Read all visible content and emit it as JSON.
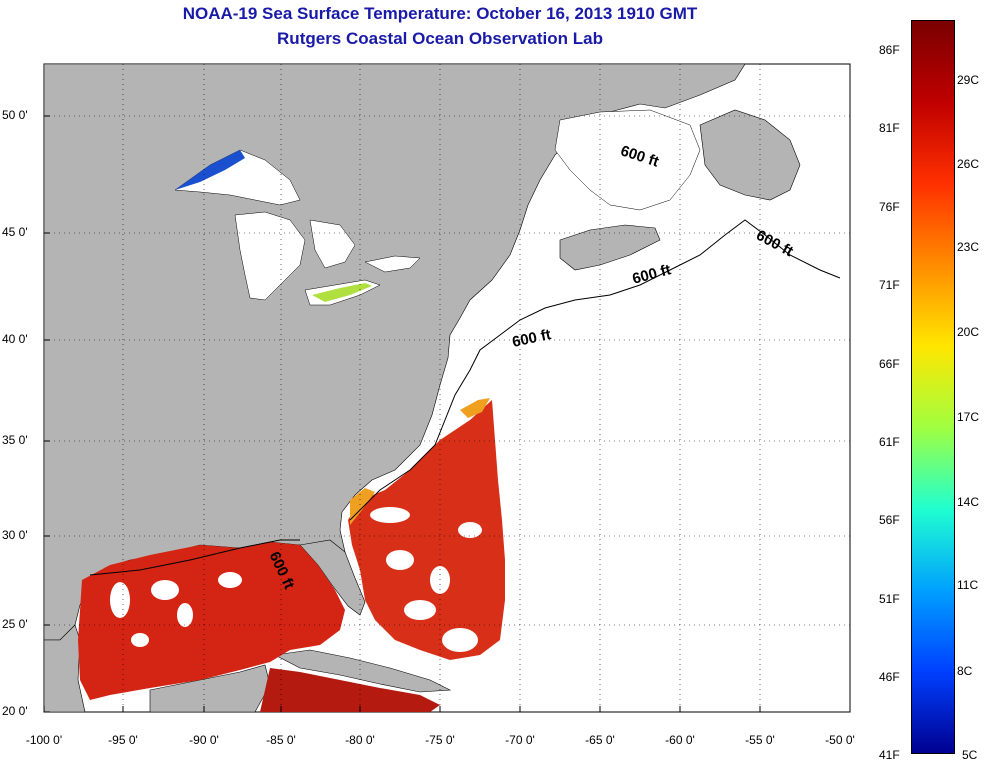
{
  "header": {
    "title": "NOAA-19 Sea Surface Temperature:  October 16, 2013 1910 GMT",
    "subtitle": "Rutgers Coastal Ocean Observation Lab"
  },
  "map": {
    "lat_labels": [
      "50 0'",
      "45 0'",
      "40 0'",
      "35 0'",
      "30 0'",
      "25 0'",
      "20 0'"
    ],
    "lon_labels": [
      "-100 0'",
      "-95 0'",
      "-90 0'",
      "-85 0'",
      "-80 0'",
      "-75 0'",
      "-70 0'",
      "-65 0'",
      "-60 0'",
      "-55 0'",
      "-50 0'"
    ],
    "contour_labels": [
      "600 ft",
      "600 ft",
      "600 ft",
      "600 ft",
      "600 ft"
    ],
    "colors": {
      "land": "#b4b4b4",
      "ocean_no_data": "#ffffff",
      "warm_water": "#d82010",
      "cold_water": "#1a4fd0"
    }
  },
  "colorbar": {
    "fahrenheit_labels": [
      "86F",
      "81F",
      "76F",
      "71F",
      "66F",
      "61F",
      "56F",
      "51F",
      "46F",
      "41F"
    ],
    "celsius_labels": [
      "29C",
      "26C",
      "23C",
      "20C",
      "17C",
      "14C",
      "11C",
      "8C",
      "5C"
    ],
    "colors": [
      "#7a0000",
      "#c00000",
      "#ff3000",
      "#ff8c00",
      "#ffe600",
      "#a0ff40",
      "#20ffd0",
      "#00a0ff",
      "#0040ff",
      "#000090"
    ]
  }
}
